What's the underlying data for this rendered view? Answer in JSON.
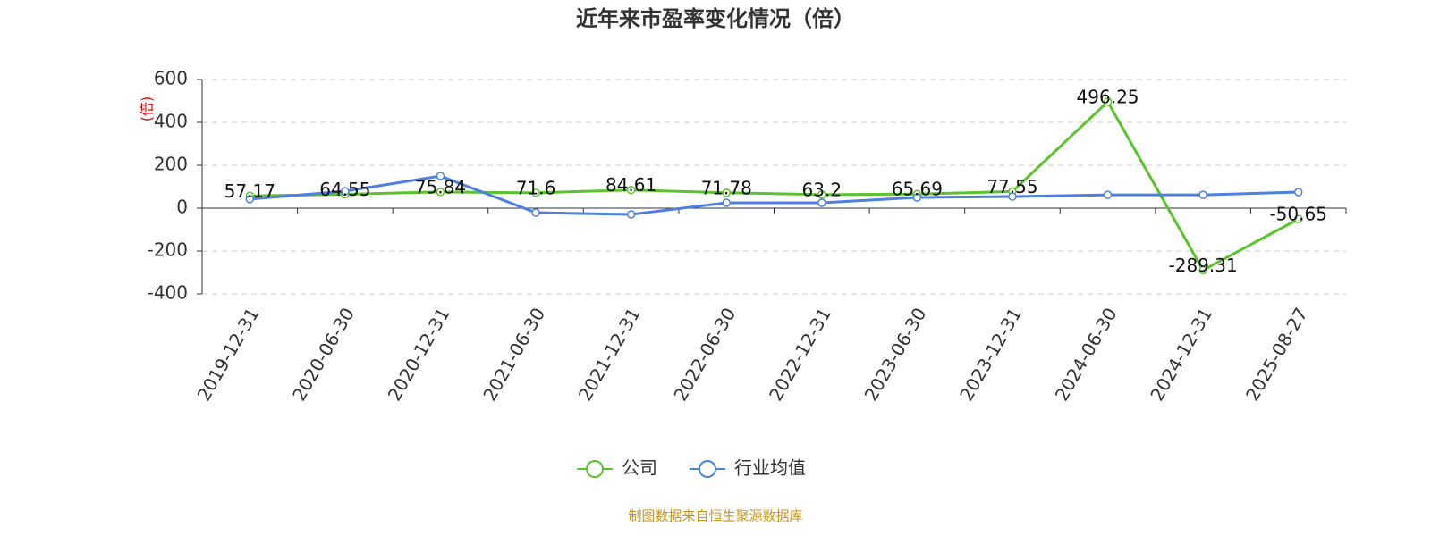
{
  "chart_data": {
    "type": "line",
    "title": "近年来市盈率变化情况（倍）",
    "y_label": "(倍)",
    "categories": [
      "2019-12-31",
      "2020-06-30",
      "2020-12-31",
      "2021-06-30",
      "2021-12-31",
      "2022-06-30",
      "2022-12-31",
      "2023-06-30",
      "2023-12-31",
      "2024-06-30",
      "2024-12-31",
      "2025-08-27"
    ],
    "series": [
      {
        "name": "公司",
        "color": "#5cc22e",
        "values": [
          57.17,
          64.55,
          75.84,
          71.6,
          84.61,
          71.78,
          63.2,
          65.69,
          77.55,
          496.25,
          -289.31,
          -50.65
        ]
      },
      {
        "name": "行业均值",
        "color": "#4e80e0",
        "values": [
          42,
          79,
          150,
          -21,
          -29,
          25,
          25,
          50,
          54,
          62,
          62,
          75
        ]
      }
    ],
    "ylim": [
      -400,
      600
    ],
    "yticks": [
      -400,
      -200,
      0,
      200,
      400,
      600
    ],
    "grid": true,
    "source": "制图数据来自恒生聚源数据库"
  }
}
